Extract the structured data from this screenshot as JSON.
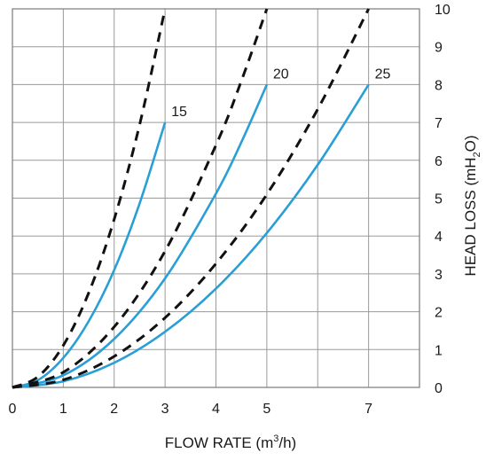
{
  "chart_data": {
    "type": "line",
    "xlabel": "FLOW RATE (m3/h)",
    "xlabel_main": "FLOW RATE (m",
    "xlabel_sup": "3",
    "xlabel_tail": "/h)",
    "ylabel": "HEAD LOSS (mH2O)",
    "ylabel_main": "HEAD LOSS (mH",
    "ylabel_sub": "2",
    "ylabel_tail": "O)",
    "xlim": [
      0,
      8
    ],
    "ylim": [
      0,
      10
    ],
    "x_ticks": [
      "0",
      "1",
      "2",
      "3",
      "4",
      "5",
      "7"
    ],
    "x_tick_values": [
      0,
      1,
      2,
      3,
      4,
      5,
      7
    ],
    "y_ticks": [
      "0",
      "1",
      "2",
      "3",
      "4",
      "5",
      "6",
      "7",
      "8",
      "9",
      "10"
    ],
    "y_tick_values": [
      0,
      1,
      2,
      3,
      4,
      5,
      6,
      7,
      8,
      9,
      10
    ],
    "grid": true,
    "colors": {
      "solid": "#2a9fd6",
      "dashed": "#111111",
      "grid": "#9a9a9a"
    },
    "series": [
      {
        "name": "15",
        "style": "solid",
        "x": [
          0,
          0.5,
          1,
          1.5,
          2,
          2.5,
          3
        ],
        "y": [
          0,
          0.19,
          0.78,
          1.75,
          3.1,
          4.86,
          7
        ]
      },
      {
        "name": "",
        "style": "dashed",
        "x": [
          0,
          0.5,
          1,
          1.5,
          2,
          2.5,
          3
        ],
        "y": [
          0,
          0.28,
          1.11,
          2.5,
          4.44,
          6.94,
          10
        ]
      },
      {
        "name": "20",
        "style": "solid",
        "x": [
          0,
          1,
          2,
          3,
          4,
          4.5,
          5
        ],
        "y": [
          0,
          0.32,
          1.28,
          2.88,
          5.12,
          6.48,
          8
        ]
      },
      {
        "name": "",
        "style": "dashed",
        "x": [
          0,
          1,
          2,
          3,
          4,
          4.5,
          5
        ],
        "y": [
          0,
          0.4,
          1.6,
          3.6,
          6.4,
          8.1,
          10
        ]
      },
      {
        "name": "25",
        "style": "solid",
        "x": [
          0,
          1,
          2,
          3,
          4,
          5,
          6,
          7
        ],
        "y": [
          0,
          0.16,
          0.65,
          1.47,
          2.61,
          4.08,
          5.88,
          8
        ]
      },
      {
        "name": "",
        "style": "dashed",
        "x": [
          0,
          1,
          2,
          3,
          4,
          5,
          6,
          7
        ],
        "y": [
          0,
          0.2,
          0.82,
          1.84,
          3.27,
          5.1,
          7.35,
          10
        ]
      }
    ]
  }
}
